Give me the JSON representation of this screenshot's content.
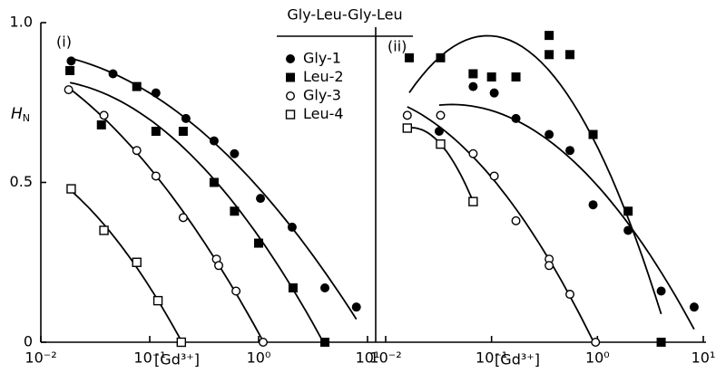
{
  "chart_data": {
    "type": "scatter",
    "title": "Gly-Leu-Gly-Leu",
    "ylabel": "H",
    "ylabel_sub": "N",
    "xlabel": "[Gd³⁺]",
    "xscale": "log",
    "xlim": [
      0.01,
      10
    ],
    "xticks": [
      {
        "value": 0.01,
        "label": "10⁻²"
      },
      {
        "value": 0.1,
        "label": "10⁻¹"
      },
      {
        "value": 1,
        "label": "10⁰"
      },
      {
        "value": 10,
        "label": "10¹"
      }
    ],
    "ylim": [
      0,
      1
    ],
    "yticks": [
      0,
      0.5,
      {
        "value": 1,
        "label": "1.0"
      }
    ],
    "series": [
      {
        "name": "Gly-1",
        "marker": "filled-circle",
        "color": "#000000"
      },
      {
        "name": "Leu-2",
        "marker": "filled-square",
        "color": "#000000"
      },
      {
        "name": "Gly-3",
        "marker": "open-circle",
        "color": "#000000"
      },
      {
        "name": "Leu-4",
        "marker": "open-square",
        "color": "#000000"
      }
    ],
    "panels": [
      {
        "label": "(i)",
        "series": [
          {
            "x": [
              0.019,
              0.046,
              0.114,
              0.215,
              0.39,
              0.6,
              1.04,
              2.03,
              4.06,
              7.9
            ],
            "values": [
              0.88,
              0.84,
              0.78,
              0.7,
              0.63,
              0.59,
              0.45,
              0.36,
              0.17,
              0.11
            ]
          },
          {
            "x": [
              0.0185,
              0.036,
              0.076,
              0.114,
              0.203,
              0.39,
              0.6,
              1.0,
              2.07,
              4.06
            ],
            "values": [
              0.85,
              0.68,
              0.8,
              0.66,
              0.66,
              0.5,
              0.41,
              0.31,
              0.17,
              0
            ]
          },
          {
            "x": [
              0.018,
              0.038,
              0.076,
              0.114,
              0.203,
              0.41,
              0.43,
              0.62,
              1.1
            ],
            "values": [
              0.79,
              0.71,
              0.6,
              0.52,
              0.39,
              0.26,
              0.24,
              0.16,
              0
            ]
          },
          {
            "x": [
              0.019,
              0.038,
              0.076,
              0.119,
              0.195
            ],
            "values": [
              0.48,
              0.35,
              0.25,
              0.13,
              0
            ]
          }
        ]
      },
      {
        "label": "(ii)",
        "series": [
          {
            "x": [
              0.032,
              0.067,
              0.106,
              0.17,
              0.35,
              0.55,
              0.91,
              1.95,
              4.0,
              8.2
            ],
            "values": [
              0.66,
              0.8,
              0.78,
              0.7,
              0.65,
              0.6,
              0.43,
              0.35,
              0.16,
              0.11
            ]
          },
          {
            "x": [
              0.0167,
              0.033,
              0.067,
              0.1,
              0.17,
              0.35,
              0.35,
              0.55,
              0.91,
              1.95,
              4.0
            ],
            "values": [
              0.89,
              0.89,
              0.84,
              0.83,
              0.83,
              0.96,
              0.9,
              0.9,
              0.65,
              0.41,
              0
            ]
          },
          {
            "x": [
              0.016,
              0.033,
              0.067,
              0.106,
              0.17,
              0.35,
              0.35,
              0.55,
              0.96
            ],
            "values": [
              0.71,
              0.71,
              0.59,
              0.52,
              0.38,
              0.26,
              0.24,
              0.15,
              0
            ]
          },
          {
            "x": [
              0.016,
              0.033,
              0.067
            ],
            "values": [
              0.67,
              0.62,
              0.44
            ]
          }
        ]
      }
    ]
  }
}
